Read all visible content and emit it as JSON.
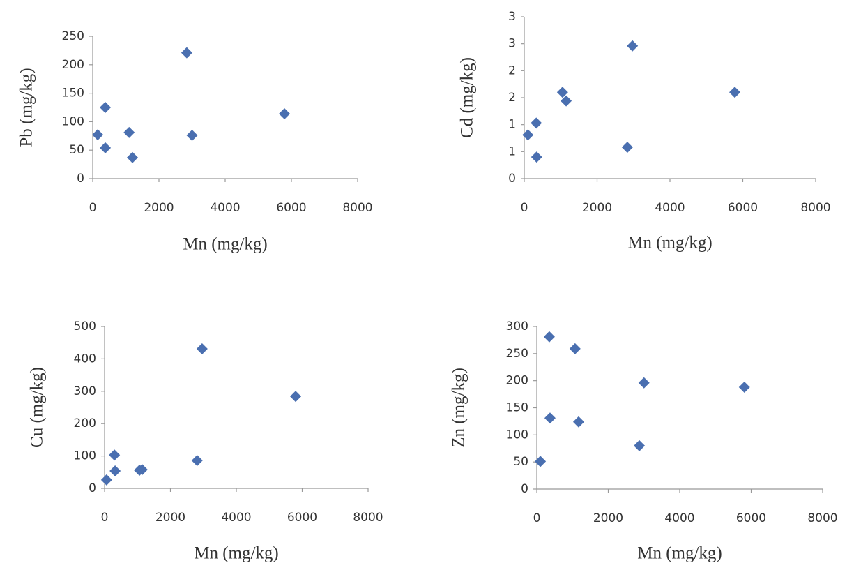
{
  "chart_data": [
    {
      "type": "scatter",
      "x_label": "Mn (mg/kg)",
      "y_label": "Pb (mg/kg)",
      "color": "#4a6fb0",
      "x": [
        150,
        380,
        380,
        1100,
        1200,
        2840,
        3000,
        5790
      ],
      "values": [
        77,
        125,
        54,
        81,
        37,
        221,
        76,
        114
      ],
      "xlim": [
        0,
        8000
      ],
      "xticks": [
        0,
        2000,
        4000,
        6000,
        8000
      ],
      "ylim": [
        0,
        250
      ],
      "yticks": [
        0,
        50,
        100,
        150,
        200,
        250
      ]
    },
    {
      "type": "scatter",
      "x_label": "Mn (mg/kg)",
      "y_label": "Cd (mg/kg)",
      "color": "#4a6fb0",
      "x": [
        100,
        330,
        340,
        1050,
        1150,
        2830,
        2970,
        5780
      ],
      "values": [
        0.81,
        1.03,
        0.4,
        1.6,
        1.44,
        0.58,
        2.46,
        1.6
      ],
      "xlim": [
        0,
        8000
      ],
      "xticks": [
        0,
        2000,
        4000,
        6000,
        8000
      ],
      "ylim": [
        0,
        3
      ],
      "yticks": [
        0,
        {
          "value": 0.5,
          "label": "1"
        },
        1,
        {
          "value": 1.5,
          "label": "2"
        },
        2,
        {
          "value": 2.5,
          "label": "3"
        },
        3
      ]
    },
    {
      "type": "scatter",
      "x_label": "Mn (mg/kg)",
      "y_label": "Cu (mg/kg)",
      "color": "#4a6fb0",
      "x": [
        60,
        300,
        320,
        1060,
        1140,
        2810,
        2960,
        5800
      ],
      "values": [
        26,
        103,
        54,
        56,
        58,
        86,
        431,
        284
      ],
      "xlim": [
        0,
        8000
      ],
      "xticks": [
        0,
        2000,
        4000,
        6000,
        8000
      ],
      "ylim": [
        0,
        500
      ],
      "yticks": [
        0,
        100,
        200,
        300,
        400,
        500
      ]
    },
    {
      "type": "scatter",
      "x_label": "Mn (mg/kg)",
      "y_label": "Zn (mg/kg)",
      "color": "#4a6fb0",
      "x": [
        100,
        350,
        370,
        1070,
        1170,
        2870,
        3000,
        5810
      ],
      "values": [
        51,
        281,
        131,
        259,
        124,
        80,
        196,
        188
      ],
      "xlim": [
        0,
        8000
      ],
      "xticks": [
        0,
        2000,
        4000,
        6000,
        8000
      ],
      "ylim": [
        0,
        300
      ],
      "yticks": [
        0,
        50,
        100,
        150,
        200,
        250,
        300
      ]
    }
  ]
}
